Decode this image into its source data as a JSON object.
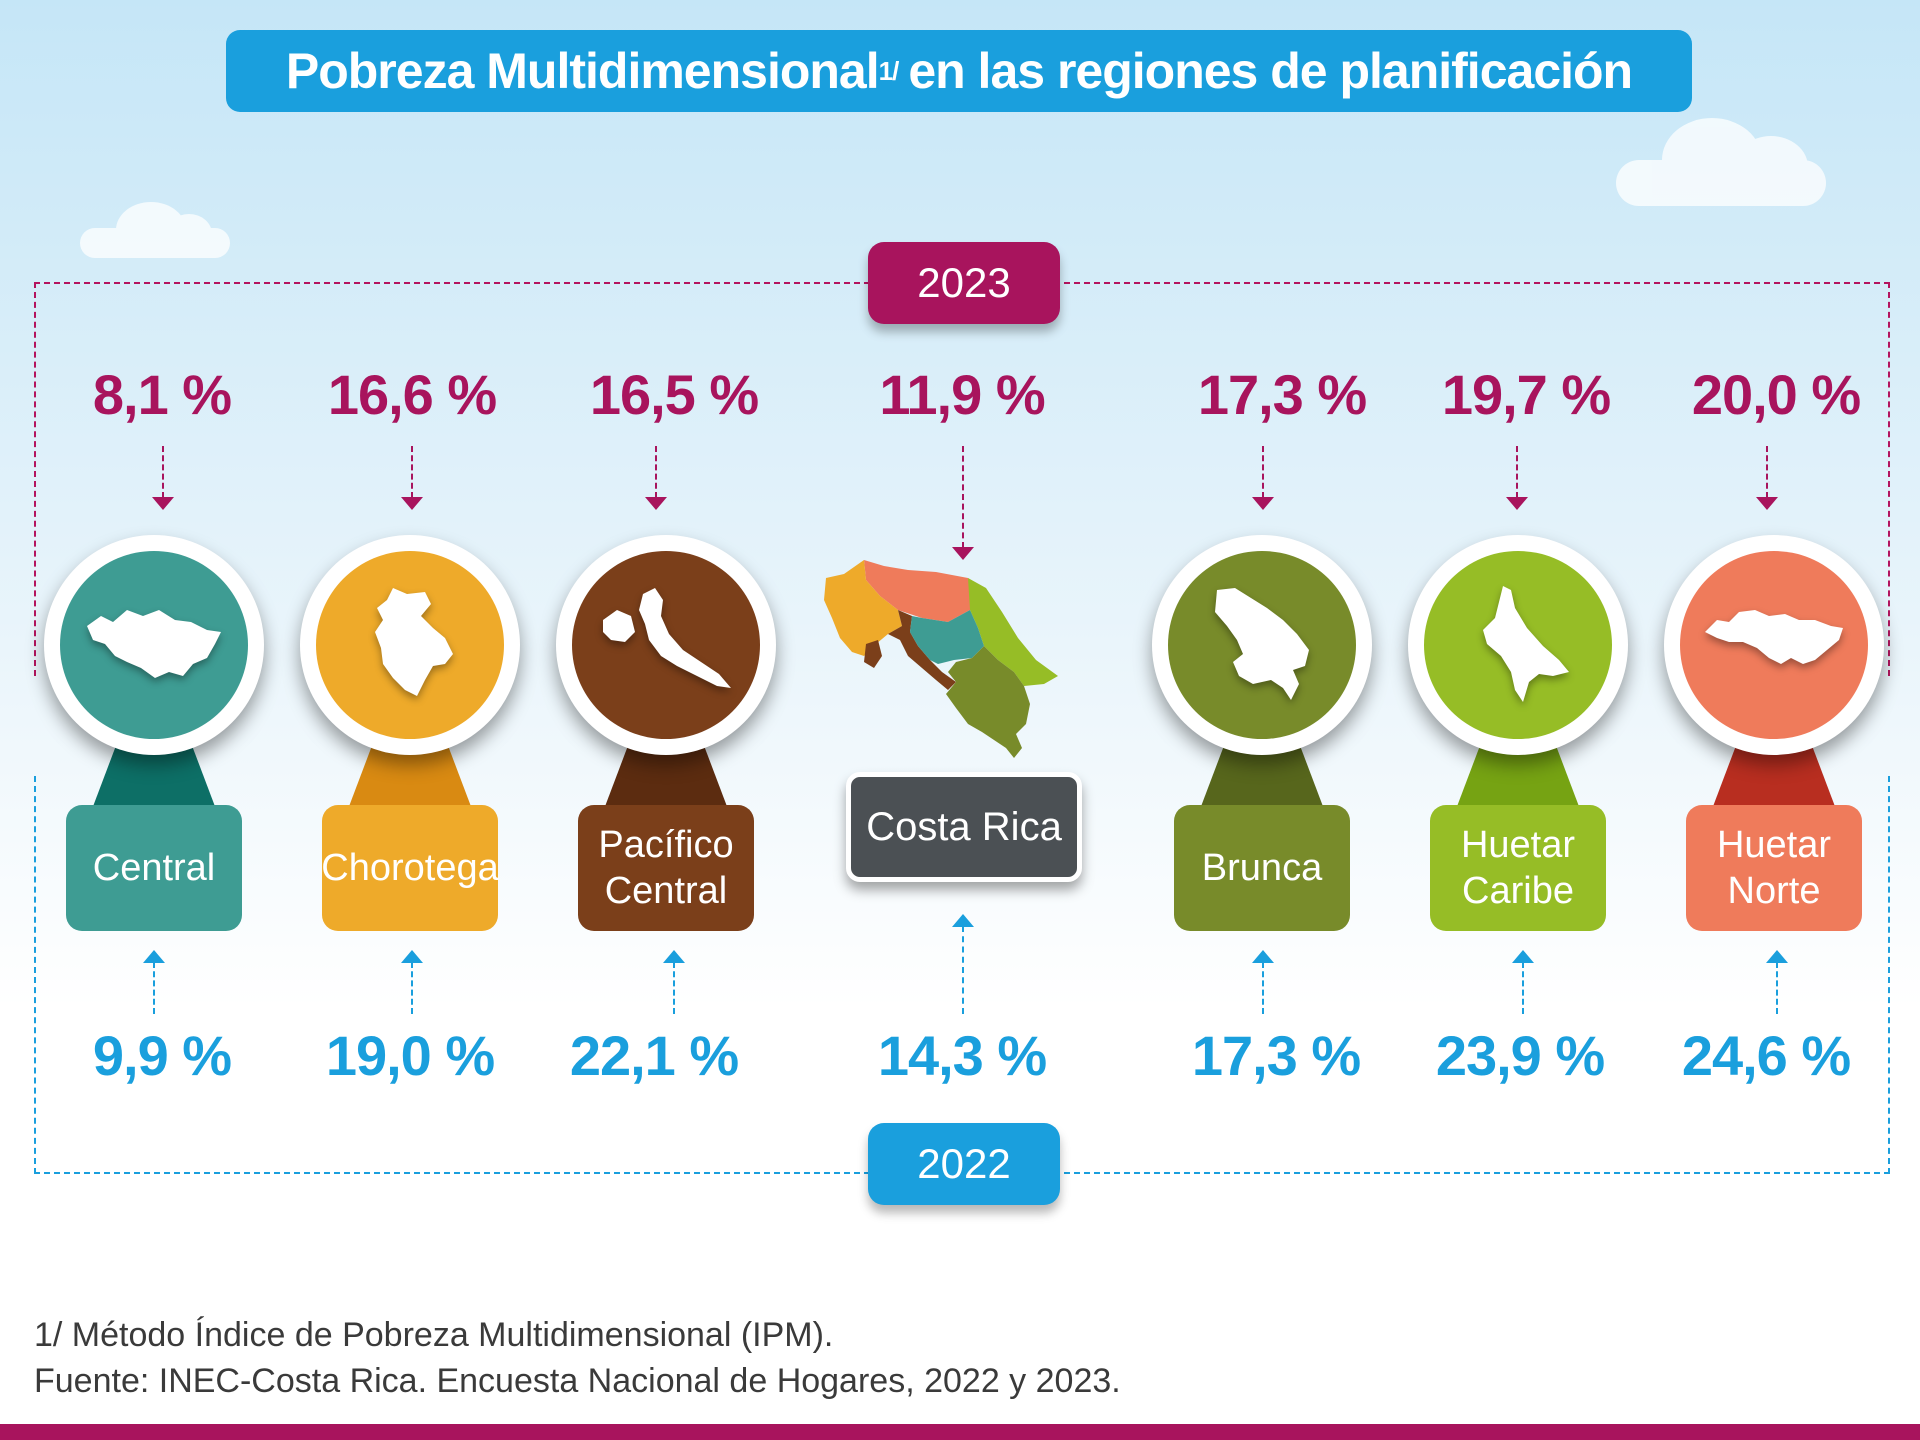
{
  "title": {
    "text": "Pobreza Multidimensional",
    "sup": "1/",
    "rest": "en las regiones de planificación"
  },
  "years": {
    "current": "2023",
    "previous": "2022"
  },
  "colors": {
    "year_2023": "#a8145d",
    "year_2022": "#1a9fdd"
  },
  "regions": [
    {
      "name": "Central",
      "value_2023": "8,1 %",
      "value_2022": "9,9 %",
      "icon": "central-region-map-icon",
      "color": "#3e9c93",
      "dark": "#0d6f66"
    },
    {
      "name": "Chorotega",
      "value_2023": "16,6 %",
      "value_2022": "19,0 %",
      "icon": "chorotega-region-map-icon",
      "color": "#eeaa2a",
      "dark": "#d98a12"
    },
    {
      "name": "Pacífico Central",
      "line1": "Pacífico",
      "line2": "Central",
      "value_2023": "16,5 %",
      "value_2022": "22,1 %",
      "icon": "pacifico-central-region-map-icon",
      "color": "#7b3f1a",
      "dark": "#5c2c10"
    },
    {
      "name": "Brunca",
      "value_2023": "17,3 %",
      "value_2022": "17,3 %",
      "icon": "brunca-region-map-icon",
      "color": "#788b2a",
      "dark": "#57661c"
    },
    {
      "name": "Huetar Caribe",
      "line1": "Huetar",
      "line2": "Caribe",
      "value_2023": "19,7 %",
      "value_2022": "23,9 %",
      "icon": "huetar-caribe-region-map-icon",
      "color": "#96bd26",
      "dark": "#76a313"
    },
    {
      "name": "Huetar Norte",
      "line1": "Huetar",
      "line2": "Norte",
      "value_2023": "20,0 %",
      "value_2022": "24,6 %",
      "icon": "huetar-norte-region-map-icon",
      "color": "#ef7b5b",
      "dark": "#b82e20"
    }
  ],
  "national": {
    "name": "Costa Rica",
    "value_2023": "11,9 %",
    "value_2022": "14,3 %",
    "icon": "costa-rica-map-icon"
  },
  "footnotes": {
    "note": "1/ Método Índice de Pobreza Multidimensional (IPM).",
    "source": "Fuente: INEC-Costa Rica. Encuesta Nacional de Hogares, 2022 y 2023."
  }
}
